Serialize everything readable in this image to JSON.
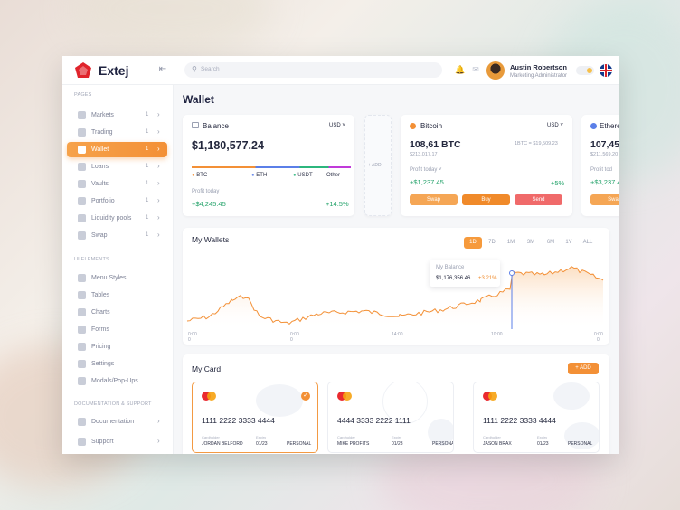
{
  "app": {
    "brand": "Extej"
  },
  "header": {
    "search_placeholder": "Search",
    "user_name": "Austin Robertson",
    "user_role": "Marketing Administrator"
  },
  "sidebar": {
    "sections": [
      "PAGES",
      "UI ELEMENTS",
      "DOCUMENTATION & SUPPORT"
    ],
    "pages": [
      {
        "label": "Markets",
        "count": "1"
      },
      {
        "label": "Trading",
        "count": "1"
      },
      {
        "label": "Wallet",
        "count": "1"
      },
      {
        "label": "Loans",
        "count": "1"
      },
      {
        "label": "Vaults",
        "count": "1"
      },
      {
        "label": "Portfolio",
        "count": "1"
      },
      {
        "label": "Liquidity pools",
        "count": "1"
      },
      {
        "label": "Swap",
        "count": "1"
      }
    ],
    "ui_elements": [
      "Menu Styles",
      "Tables",
      "Charts",
      "Forms",
      "Pricing",
      "Settings",
      "Modals/Pop-Ups"
    ],
    "docs": [
      "Documentation",
      "Support"
    ]
  },
  "main": {
    "title": "Wallet",
    "balance": {
      "label": "Balance",
      "currency": "USD",
      "amount": "$1,180,577.24",
      "legend": [
        "BTC",
        "ETH",
        "USDT",
        "Other"
      ],
      "profit_label": "Profit today",
      "profit_value": "+$4,245.45",
      "profit_pct": "+14.5%"
    },
    "add_label": "+ ADD",
    "bitcoin": {
      "name": "Bitcoin",
      "currency": "USD",
      "amount": "108,61 BTC",
      "sub": "$213,017.17",
      "rate": "1BTC = $19,509.23",
      "profit_label": "Profit today",
      "profit_value": "+$1,237.45",
      "profit_pct": "+5%",
      "buttons": [
        "Swap",
        "Buy",
        "Send"
      ]
    },
    "ethereum": {
      "name": "Ethere",
      "amount": "107,45",
      "sub": "$211,569.20",
      "profit_label": "Profit tod",
      "profit_value": "+$3,237.4",
      "button": "Swa"
    },
    "wallets": {
      "title": "My Wallets",
      "ranges": [
        "1D",
        "7D",
        "1M",
        "3M",
        "6M",
        "1Y",
        "ALL"
      ],
      "tooltip_label": "My Balance",
      "tooltip_value": "$1,176,356.46",
      "tooltip_pct": "+3.21%",
      "x_ticks": [
        "0:00",
        "0:00",
        "14:00",
        "10:00",
        "0:00"
      ],
      "x_ticks_sub": [
        "0",
        "0",
        "",
        "",
        "0"
      ]
    },
    "cards": {
      "title": "My Card",
      "add_label": "+ ADD",
      "items": [
        {
          "number": "1111 2222 3333 4444",
          "holder_label": "Cardholder",
          "holder": "JORDAN BELFORD",
          "expiry_label": "Expiry",
          "expiry": "01/23",
          "type": "PERSONAL"
        },
        {
          "number": "4444 3333 2222 1111",
          "holder_label": "Cardholder",
          "holder": "MIKE PROFITS",
          "expiry_label": "Expiry",
          "expiry": "01/23",
          "type": "PERSONAL"
        },
        {
          "number": "1111 2222 3333 4444",
          "holder_label": "Cardholder",
          "holder": "JASON BRAX",
          "expiry_label": "Expiry",
          "expiry": "01/23",
          "type": "PERSONAL"
        }
      ]
    }
  },
  "colors": {
    "accent": "#f39036",
    "green": "#25a36b",
    "danger": "#f06a6a"
  }
}
